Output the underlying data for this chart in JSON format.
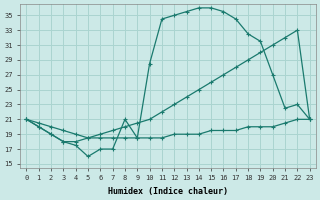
{
  "xlabel": "Humidex (Indice chaleur)",
  "background_color": "#cce9e7",
  "grid_color": "#aad4d0",
  "line_color": "#1a7a6e",
  "xlim": [
    -0.5,
    23.5
  ],
  "ylim": [
    14.5,
    36.5
  ],
  "yticks": [
    15,
    17,
    19,
    21,
    23,
    25,
    27,
    29,
    31,
    33,
    35
  ],
  "xticks": [
    0,
    1,
    2,
    3,
    4,
    5,
    6,
    7,
    8,
    9,
    10,
    11,
    12,
    13,
    14,
    15,
    16,
    17,
    18,
    19,
    20,
    21,
    22,
    23
  ],
  "series1_x": [
    0,
    1,
    2,
    3,
    4,
    5,
    6,
    7,
    8,
    9,
    10,
    11,
    12,
    13,
    14,
    15,
    16,
    17,
    18,
    19,
    20,
    21,
    22,
    23
  ],
  "series1_y": [
    21,
    20,
    19,
    18,
    17.5,
    16,
    17,
    17,
    21,
    18.5,
    28.5,
    34.5,
    35,
    35.5,
    36,
    36,
    35.5,
    34.5,
    32.5,
    31.5,
    27,
    22.5,
    23,
    21
  ],
  "series2_x": [
    0,
    1,
    2,
    3,
    4,
    5,
    6,
    7,
    8,
    9,
    10,
    11,
    12,
    13,
    14,
    15,
    16,
    17,
    18,
    19,
    20,
    21,
    22,
    23
  ],
  "series2_y": [
    21,
    20.5,
    20,
    19.5,
    19,
    18.5,
    19,
    19.5,
    20,
    20.5,
    21,
    22,
    23,
    24,
    25,
    26,
    27,
    28,
    29,
    30,
    31,
    32,
    33,
    21
  ],
  "series3_x": [
    0,
    1,
    2,
    3,
    4,
    5,
    6,
    7,
    8,
    9,
    10,
    11,
    12,
    13,
    14,
    15,
    16,
    17,
    18,
    19,
    20,
    21,
    22,
    23
  ],
  "series3_y": [
    21,
    20,
    19,
    18,
    18,
    18.5,
    18.5,
    18.5,
    18.5,
    18.5,
    18.5,
    18.5,
    19,
    19,
    19,
    19.5,
    19.5,
    19.5,
    20,
    20,
    20,
    20.5,
    21,
    21
  ]
}
